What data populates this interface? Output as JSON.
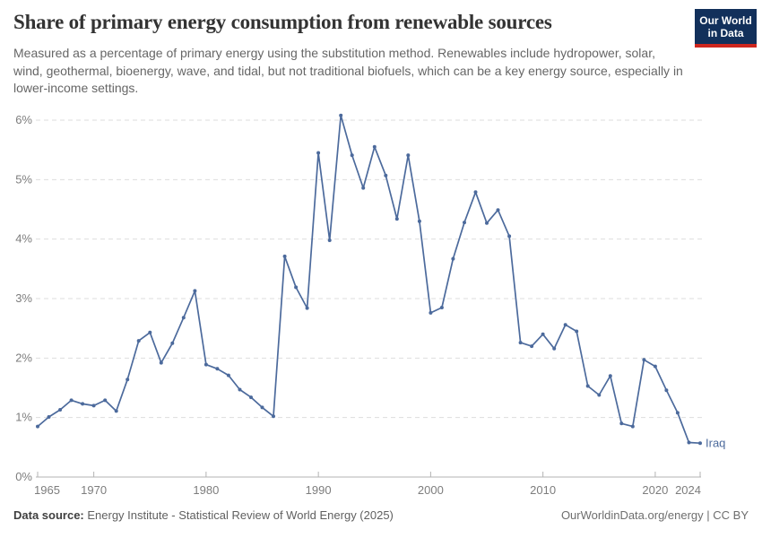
{
  "header": {
    "title": "Share of primary energy consumption from renewable sources",
    "subtitle": "Measured as a percentage of primary energy using the substitution method. Renewables include hydropower, solar, wind, geothermal, bioenergy, wave, and tidal, but not traditional biofuels, which can be a key energy source, especially in lower-income settings."
  },
  "logo": {
    "line1": "Our World",
    "line2": "in Data",
    "bg_color": "#12305B",
    "accent_color": "#CE261E"
  },
  "footer": {
    "source_label": "Data source:",
    "source_text": " Energy Institute - Statistical Review of World Energy (2025)",
    "credit": "OurWorldinData.org/energy | CC BY"
  },
  "colors": {
    "grid": "#dddddd",
    "axis": "#b3b3b3",
    "tick_label": "#7d7d7d",
    "line": "#4C6A9C"
  },
  "chart_data": {
    "type": "line",
    "title": "Share of primary energy consumption from renewable sources",
    "xlabel": "",
    "ylabel": "",
    "xlim": [
      1965,
      2024
    ],
    "ylim": [
      0,
      6
    ],
    "grid": "horizontal-dashed",
    "legend": "end-of-line-label",
    "ytick_suffix": "%",
    "yticks": [
      0,
      1,
      2,
      3,
      4,
      5,
      6
    ],
    "xticks": [
      1965,
      1970,
      1980,
      1990,
      2000,
      2010,
      2020,
      2024
    ],
    "series": [
      {
        "name": "Iraq",
        "color": "#4C6A9C",
        "years": [
          1965,
          1966,
          1967,
          1968,
          1969,
          1970,
          1971,
          1972,
          1973,
          1974,
          1975,
          1976,
          1977,
          1978,
          1979,
          1980,
          1981,
          1982,
          1983,
          1984,
          1985,
          1986,
          1987,
          1988,
          1989,
          1990,
          1991,
          1992,
          1993,
          1994,
          1995,
          1996,
          1997,
          1998,
          1999,
          2000,
          2001,
          2002,
          2003,
          2004,
          2005,
          2006,
          2007,
          2008,
          2009,
          2010,
          2011,
          2012,
          2013,
          2014,
          2015,
          2016,
          2017,
          2018,
          2019,
          2020,
          2021,
          2022,
          2023,
          2024
        ],
        "values": [
          0.85,
          1.01,
          1.13,
          1.29,
          1.23,
          1.2,
          1.29,
          1.11,
          1.64,
          2.29,
          2.43,
          1.92,
          2.25,
          2.68,
          3.13,
          1.89,
          1.82,
          1.71,
          1.47,
          1.34,
          1.17,
          1.02,
          3.71,
          3.19,
          2.84,
          5.45,
          3.98,
          6.08,
          5.41,
          4.86,
          5.55,
          5.07,
          4.34,
          5.41,
          4.3,
          2.76,
          2.85,
          3.67,
          4.28,
          4.79,
          4.27,
          4.49,
          4.05,
          2.26,
          2.2,
          2.4,
          2.16,
          2.56,
          2.45,
          1.53,
          1.38,
          1.7,
          0.9,
          0.85,
          1.97,
          1.86,
          1.46,
          1.08,
          0.58,
          0.57
        ]
      }
    ]
  }
}
